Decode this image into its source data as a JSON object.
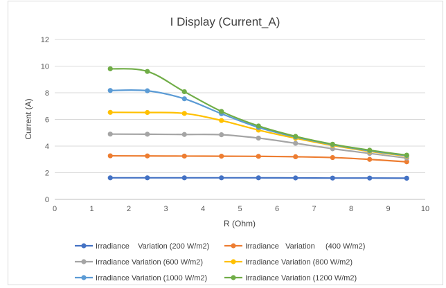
{
  "chart_data": {
    "type": "line",
    "title": "I Display (Current_A)",
    "xlabel": "R (Ohm)",
    "ylabel": "Current (A)",
    "xlim": [
      0,
      10
    ],
    "ylim": [
      0,
      12
    ],
    "x_ticks": [
      "0",
      "1",
      "2",
      "3",
      "4",
      "5",
      "6",
      "7",
      "8",
      "9",
      "10"
    ],
    "y_ticks": [
      "0",
      "2",
      "4",
      "6",
      "8",
      "10",
      "12"
    ],
    "grid": "horizontal",
    "legend_position": "bottom",
    "x": [
      1.5,
      2.5,
      3.5,
      4.5,
      5.5,
      6.5,
      7.5,
      8.5,
      9.5
    ],
    "series": [
      {
        "name": "Irradiance    Variation (200 W/m2)",
        "color": "#4472C4",
        "values": [
          1.62,
          1.62,
          1.62,
          1.62,
          1.62,
          1.61,
          1.6,
          1.6,
          1.59
        ]
      },
      {
        "name": "Irradiance   Variation     (400 W/m2)",
        "color": "#ED7D31",
        "values": [
          3.27,
          3.26,
          3.25,
          3.24,
          3.23,
          3.2,
          3.14,
          3.0,
          2.82
        ]
      },
      {
        "name": "Irradiance Variation (600 W/m2)",
        "color": "#A5A5A5",
        "values": [
          4.9,
          4.89,
          4.87,
          4.85,
          4.6,
          4.21,
          3.8,
          3.45,
          3.1
        ]
      },
      {
        "name": "Irradiance Variation (800 W/m2)",
        "color": "#FFC000",
        "values": [
          6.53,
          6.52,
          6.45,
          5.92,
          5.2,
          4.59,
          4.05,
          3.6,
          3.25
        ]
      },
      {
        "name": "Irradiance Variation (1000 W/m2)",
        "color": "#5B9BD5",
        "values": [
          8.17,
          8.15,
          7.55,
          6.43,
          5.4,
          4.68,
          4.11,
          3.65,
          3.29
        ]
      },
      {
        "name": "Irradiance Variation (1200 W/m2)",
        "color": "#70AD47",
        "values": [
          9.8,
          9.6,
          8.08,
          6.6,
          5.51,
          4.73,
          4.14,
          3.69,
          3.32
        ]
      }
    ]
  }
}
